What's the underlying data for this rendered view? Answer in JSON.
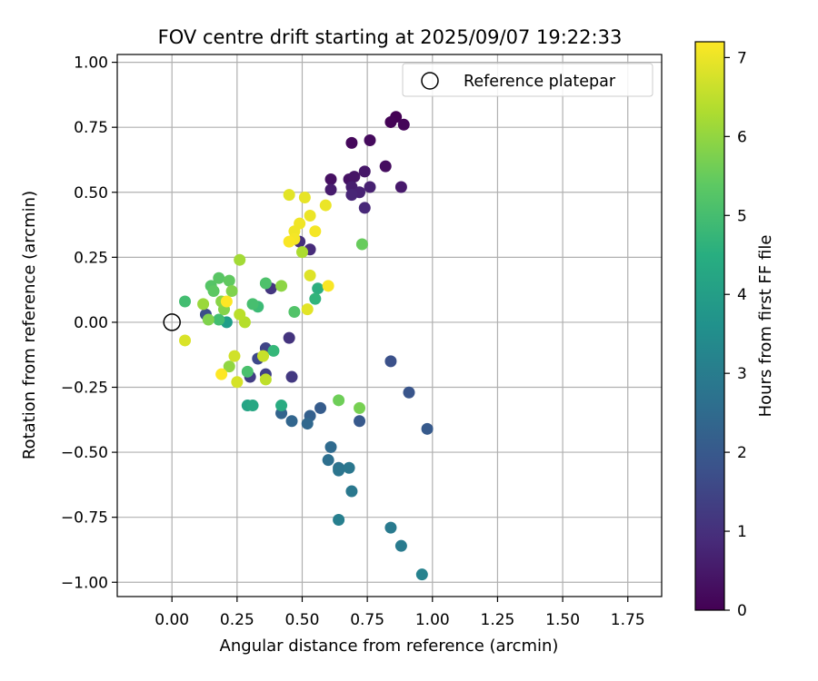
{
  "chart_data": {
    "type": "scatter",
    "title": "FOV centre drift starting at 2025/09/07 19:22:33",
    "xlabel": "Angular distance from reference (arcmin)",
    "ylabel": "Rotation from reference (arcmin)",
    "xlim": [
      -0.21,
      1.88
    ],
    "ylim": [
      -1.055,
      1.03
    ],
    "xticks": [
      0.0,
      0.25,
      0.5,
      0.75,
      1.0,
      1.25,
      1.5,
      1.75
    ],
    "xtick_labels": [
      "0.00",
      "0.25",
      "0.50",
      "0.75",
      "1.00",
      "1.25",
      "1.50",
      "1.75"
    ],
    "yticks": [
      1.0,
      0.75,
      0.5,
      0.25,
      0.0,
      -0.25,
      -0.5,
      -0.75,
      -1.0
    ],
    "ytick_labels": [
      "1.00",
      "0.75",
      "0.50",
      "0.25",
      "0.00",
      "−0.25",
      "−0.50",
      "−0.75",
      "−1.00"
    ],
    "grid": true,
    "legend": {
      "position": "top-right",
      "entries": [
        "Reference platepar"
      ]
    },
    "reference_point": {
      "x": 0.0,
      "y": 0.0,
      "label": "Reference platepar"
    },
    "colorbar": {
      "label": "Hours from first FF file",
      "min": 0,
      "max": 7.2,
      "ticks": [
        0,
        1,
        2,
        3,
        4,
        5,
        6,
        7
      ],
      "tick_labels": [
        "0",
        "1",
        "2",
        "3",
        "4",
        "5",
        "6",
        "7"
      ],
      "colormap": "viridis"
    },
    "points": [
      {
        "x": 0.86,
        "y": 0.79,
        "h": 0.0
      },
      {
        "x": 0.84,
        "y": 0.77,
        "h": 0.05
      },
      {
        "x": 0.89,
        "y": 0.76,
        "h": 0.1
      },
      {
        "x": 0.69,
        "y": 0.69,
        "h": 0.15
      },
      {
        "x": 0.76,
        "y": 0.7,
        "h": 0.2
      },
      {
        "x": 0.82,
        "y": 0.6,
        "h": 0.25
      },
      {
        "x": 0.61,
        "y": 0.55,
        "h": 0.3
      },
      {
        "x": 0.68,
        "y": 0.55,
        "h": 0.35
      },
      {
        "x": 0.7,
        "y": 0.56,
        "h": 0.4
      },
      {
        "x": 0.74,
        "y": 0.58,
        "h": 0.45
      },
      {
        "x": 0.88,
        "y": 0.52,
        "h": 0.5
      },
      {
        "x": 0.61,
        "y": 0.51,
        "h": 0.55
      },
      {
        "x": 0.69,
        "y": 0.52,
        "h": 0.6
      },
      {
        "x": 0.76,
        "y": 0.52,
        "h": 0.65
      },
      {
        "x": 0.72,
        "y": 0.5,
        "h": 0.7
      },
      {
        "x": 0.69,
        "y": 0.49,
        "h": 0.75
      },
      {
        "x": 0.74,
        "y": 0.44,
        "h": 0.8
      },
      {
        "x": 0.53,
        "y": 0.28,
        "h": 0.9
      },
      {
        "x": 0.49,
        "y": 0.31,
        "h": 1.0
      },
      {
        "x": 0.45,
        "y": -0.06,
        "h": 1.1
      },
      {
        "x": 0.38,
        "y": 0.13,
        "h": 1.15
      },
      {
        "x": 0.46,
        "y": -0.21,
        "h": 1.2
      },
      {
        "x": 0.3,
        "y": -0.21,
        "h": 1.3
      },
      {
        "x": 0.36,
        "y": -0.2,
        "h": 1.4
      },
      {
        "x": 0.36,
        "y": -0.1,
        "h": 1.5
      },
      {
        "x": 0.33,
        "y": -0.14,
        "h": 1.6
      },
      {
        "x": 0.13,
        "y": 0.03,
        "h": 1.7
      },
      {
        "x": 0.84,
        "y": -0.15,
        "h": 1.8
      },
      {
        "x": 0.91,
        "y": -0.27,
        "h": 1.9
      },
      {
        "x": 0.72,
        "y": -0.38,
        "h": 2.0
      },
      {
        "x": 0.98,
        "y": -0.41,
        "h": 2.05
      },
      {
        "x": 0.57,
        "y": -0.33,
        "h": 2.1
      },
      {
        "x": 0.53,
        "y": -0.36,
        "h": 2.2
      },
      {
        "x": 0.42,
        "y": -0.35,
        "h": 2.3
      },
      {
        "x": 0.46,
        "y": -0.38,
        "h": 2.35
      },
      {
        "x": 0.52,
        "y": -0.39,
        "h": 2.4
      },
      {
        "x": 0.61,
        "y": -0.48,
        "h": 2.5
      },
      {
        "x": 0.6,
        "y": -0.53,
        "h": 2.6
      },
      {
        "x": 0.64,
        "y": -0.56,
        "h": 2.7
      },
      {
        "x": 0.64,
        "y": -0.57,
        "h": 2.8
      },
      {
        "x": 0.68,
        "y": -0.56,
        "h": 2.85
      },
      {
        "x": 0.69,
        "y": -0.65,
        "h": 2.9
      },
      {
        "x": 0.84,
        "y": -0.79,
        "h": 2.95
      },
      {
        "x": 0.88,
        "y": -0.86,
        "h": 3.0
      },
      {
        "x": 0.64,
        "y": -0.76,
        "h": 3.1
      },
      {
        "x": 0.96,
        "y": -0.97,
        "h": 3.2
      },
      {
        "x": 0.21,
        "y": 0.0,
        "h": 4.0
      },
      {
        "x": 0.29,
        "y": -0.32,
        "h": 4.2
      },
      {
        "x": 0.31,
        "y": -0.32,
        "h": 4.3
      },
      {
        "x": 0.42,
        "y": -0.32,
        "h": 4.4
      },
      {
        "x": 0.56,
        "y": 0.13,
        "h": 4.5
      },
      {
        "x": 0.55,
        "y": 0.09,
        "h": 4.7
      },
      {
        "x": 0.39,
        "y": -0.11,
        "h": 4.8
      },
      {
        "x": 0.33,
        "y": 0.06,
        "h": 4.9
      },
      {
        "x": 0.05,
        "y": 0.08,
        "h": 5.0
      },
      {
        "x": 0.18,
        "y": 0.01,
        "h": 5.0
      },
      {
        "x": 0.31,
        "y": 0.07,
        "h": 5.05
      },
      {
        "x": 0.29,
        "y": -0.19,
        "h": 5.1
      },
      {
        "x": 0.36,
        "y": 0.15,
        "h": 5.15
      },
      {
        "x": 0.47,
        "y": 0.04,
        "h": 5.2
      },
      {
        "x": 0.15,
        "y": 0.14,
        "h": 5.25
      },
      {
        "x": 0.18,
        "y": 0.17,
        "h": 5.3
      },
      {
        "x": 0.16,
        "y": 0.12,
        "h": 5.35
      },
      {
        "x": 0.22,
        "y": 0.16,
        "h": 5.4
      },
      {
        "x": 0.73,
        "y": 0.3,
        "h": 5.5
      },
      {
        "x": 0.64,
        "y": -0.3,
        "h": 5.6
      },
      {
        "x": 0.72,
        "y": -0.33,
        "h": 5.7
      },
      {
        "x": 0.14,
        "y": 0.01,
        "h": 5.8
      },
      {
        "x": 0.23,
        "y": 0.12,
        "h": 5.8
      },
      {
        "x": 0.2,
        "y": 0.05,
        "h": 5.85
      },
      {
        "x": 0.19,
        "y": 0.08,
        "h": 5.9
      },
      {
        "x": 0.42,
        "y": 0.14,
        "h": 5.95
      },
      {
        "x": 0.22,
        "y": -0.17,
        "h": 6.0
      },
      {
        "x": 0.12,
        "y": 0.07,
        "h": 6.1
      },
      {
        "x": 0.26,
        "y": 0.24,
        "h": 6.2
      },
      {
        "x": 0.5,
        "y": 0.27,
        "h": 6.3
      },
      {
        "x": 0.28,
        "y": 0.0,
        "h": 6.4
      },
      {
        "x": 0.26,
        "y": 0.03,
        "h": 6.45
      },
      {
        "x": 0.36,
        "y": -0.22,
        "h": 6.5
      },
      {
        "x": 0.35,
        "y": -0.13,
        "h": 6.6
      },
      {
        "x": 0.24,
        "y": -0.13,
        "h": 6.7
      },
      {
        "x": 0.25,
        "y": -0.23,
        "h": 6.75
      },
      {
        "x": 0.05,
        "y": -0.07,
        "h": 6.8
      },
      {
        "x": 0.53,
        "y": 0.18,
        "h": 6.85
      },
      {
        "x": 0.52,
        "y": 0.05,
        "h": 6.9
      },
      {
        "x": 0.45,
        "y": 0.49,
        "h": 6.9
      },
      {
        "x": 0.51,
        "y": 0.48,
        "h": 6.95
      },
      {
        "x": 0.59,
        "y": 0.45,
        "h": 7.0
      },
      {
        "x": 0.53,
        "y": 0.41,
        "h": 7.0
      },
      {
        "x": 0.49,
        "y": 0.38,
        "h": 7.05
      },
      {
        "x": 0.47,
        "y": 0.35,
        "h": 7.05
      },
      {
        "x": 0.55,
        "y": 0.35,
        "h": 7.1
      },
      {
        "x": 0.47,
        "y": 0.32,
        "h": 7.1
      },
      {
        "x": 0.45,
        "y": 0.31,
        "h": 7.15
      },
      {
        "x": 0.6,
        "y": 0.14,
        "h": 7.15
      },
      {
        "x": 0.21,
        "y": 0.08,
        "h": 7.2
      },
      {
        "x": 0.19,
        "y": -0.2,
        "h": 7.2
      }
    ]
  }
}
